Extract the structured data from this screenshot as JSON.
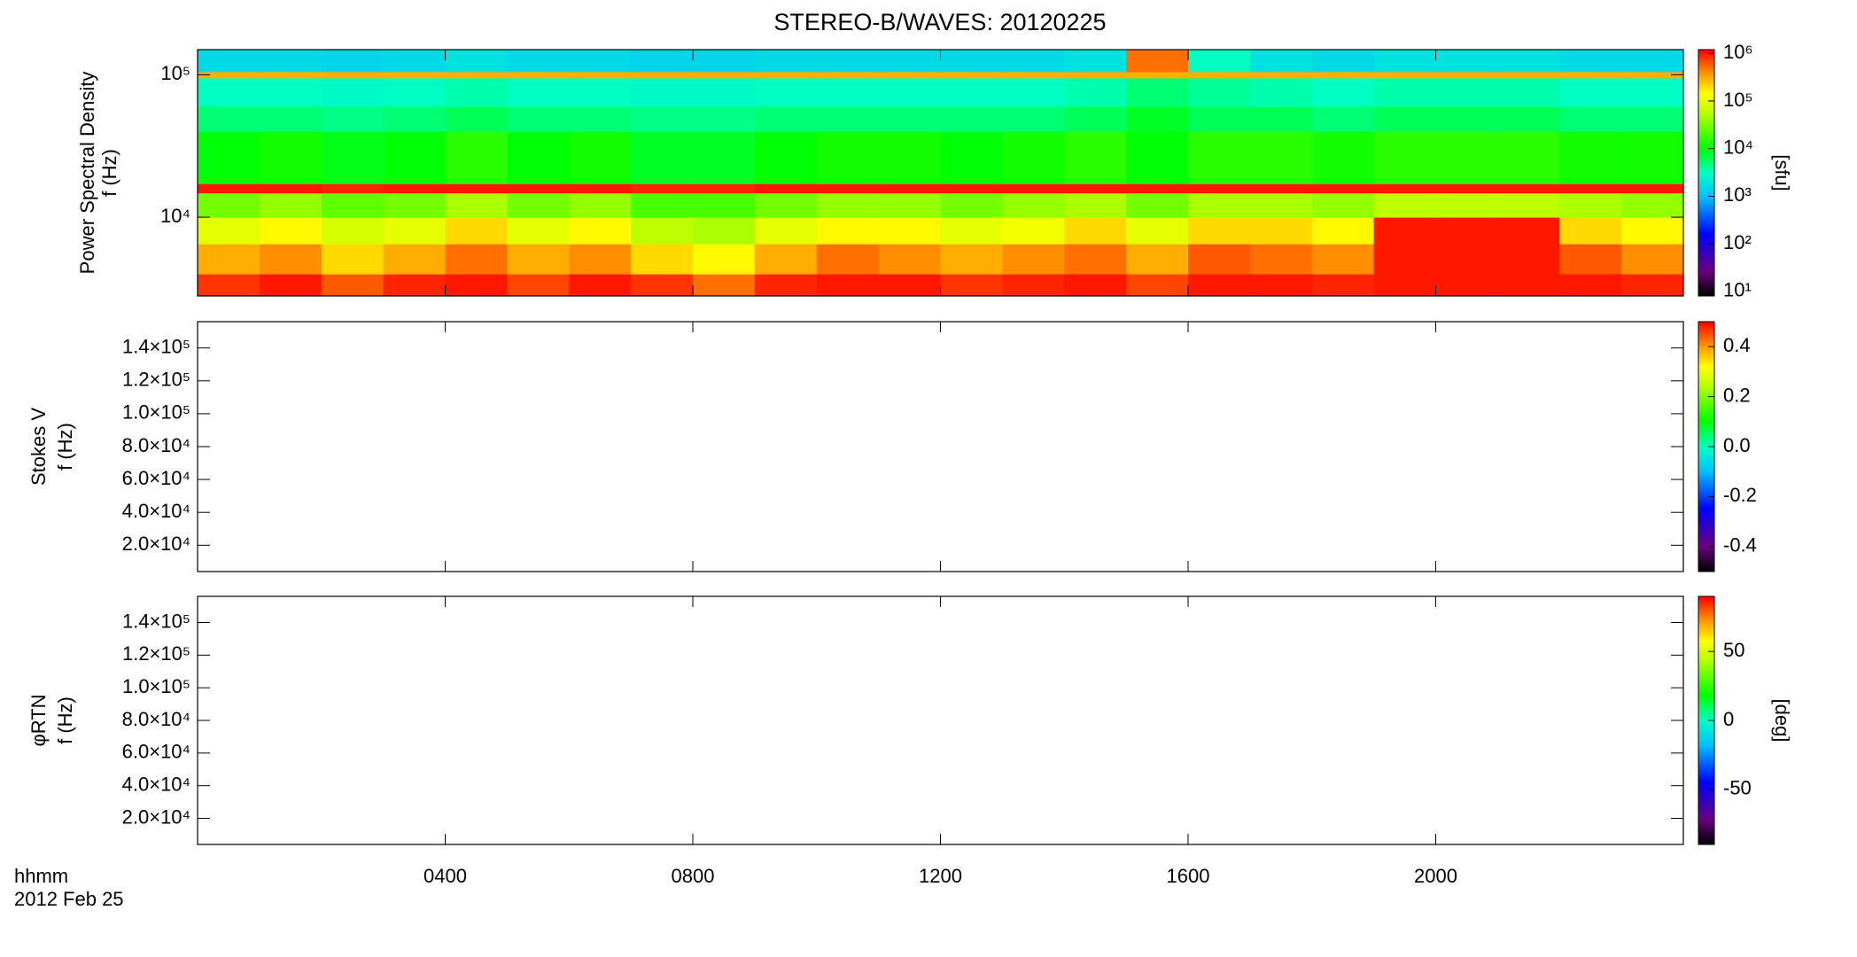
{
  "chart_data": [
    {
      "type": "spectrogram",
      "title": "STEREO-B/WAVES: 20120225",
      "ylabel": [
        "Power Spectral Density",
        "f (Hz)"
      ],
      "ylog": true,
      "ylim": [
        2800,
        150000
      ],
      "yticks": [
        {
          "value": 10000,
          "label": "10⁴"
        },
        {
          "value": 100000,
          "label": "10⁵"
        }
      ],
      "xlim": [
        0,
        24
      ],
      "x_bins": [
        0,
        1,
        2,
        3,
        4,
        5,
        6,
        7,
        8,
        9,
        10,
        11,
        12,
        13,
        14,
        15,
        16,
        17,
        18,
        19,
        20,
        21,
        22,
        23,
        24
      ],
      "y_bins": [
        2800,
        4000,
        6500,
        10000,
        14800,
        17200,
        40000,
        60000,
        95000,
        105000,
        150000
      ],
      "values": [
        [
          800000,
          1000000,
          600000,
          900000,
          1000000,
          700000,
          1000000,
          800000,
          500000,
          900000,
          1000000,
          1000000,
          800000,
          900000,
          1000000,
          700000,
          1000000,
          1000000,
          900000,
          1000000,
          1000000,
          1000000,
          1000000,
          900000
        ],
        [
          300000,
          400000,
          200000,
          300000,
          500000,
          300000,
          400000,
          200000,
          150000,
          300000,
          500000,
          400000,
          300000,
          400000,
          500000,
          300000,
          600000,
          500000,
          400000,
          1000000,
          1000000,
          1000000,
          600000,
          400000
        ],
        [
          100000,
          150000,
          80000,
          100000,
          200000,
          100000,
          150000,
          60000,
          50000,
          100000,
          150000,
          150000,
          100000,
          120000,
          200000,
          100000,
          200000,
          200000,
          150000,
          1000000,
          1000000,
          1000000,
          200000,
          150000
        ],
        [
          30000,
          40000,
          25000,
          30000,
          50000,
          30000,
          40000,
          20000,
          20000,
          30000,
          40000,
          40000,
          30000,
          40000,
          50000,
          30000,
          50000,
          50000,
          40000,
          60000,
          60000,
          60000,
          50000,
          40000
        ],
        [
          1000000,
          1000000,
          900000,
          1000000,
          1000000,
          1000000,
          1000000,
          900000,
          900000,
          1000000,
          1000000,
          1000000,
          1000000,
          1000000,
          1000000,
          1000000,
          1000000,
          1000000,
          1000000,
          1000000,
          1000000,
          1000000,
          1000000,
          1000000
        ],
        [
          10000,
          12000,
          9000,
          10000,
          15000,
          10000,
          12000,
          8000,
          8000,
          10000,
          12000,
          12000,
          10000,
          12000,
          15000,
          10000,
          15000,
          15000,
          12000,
          15000,
          15000,
          15000,
          12000,
          12000
        ],
        [
          5000,
          5000,
          4500,
          5000,
          6000,
          5000,
          5000,
          4500,
          4500,
          5000,
          5000,
          5000,
          5000,
          5000,
          6000,
          8000,
          6000,
          6000,
          5000,
          6000,
          6000,
          6000,
          5000,
          5000
        ],
        [
          3000,
          3000,
          2800,
          3000,
          3500,
          3000,
          3000,
          2800,
          2800,
          3000,
          3000,
          3000,
          3000,
          3000,
          3500,
          5000,
          4000,
          3500,
          3000,
          3500,
          3500,
          3500,
          3000,
          3000
        ],
        [
          300000,
          300000,
          300000,
          300000,
          300000,
          300000,
          300000,
          300000,
          300000,
          300000,
          300000,
          300000,
          300000,
          300000,
          300000,
          300000,
          300000,
          300000,
          300000,
          300000,
          300000,
          300000,
          300000,
          300000
        ],
        [
          1500,
          1500,
          1400,
          1500,
          1800,
          1500,
          1500,
          1400,
          1400,
          1500,
          1500,
          1500,
          1500,
          1500,
          1800,
          500000,
          3000,
          1800,
          1500,
          1800,
          1800,
          1800,
          1500,
          1500
        ]
      ],
      "clog": true,
      "clim": [
        8,
        1200000
      ],
      "cticks": [
        {
          "value": 10,
          "label": "10¹"
        },
        {
          "value": 100,
          "label": "10²"
        },
        {
          "value": 1000,
          "label": "10³"
        },
        {
          "value": 10000,
          "label": "10⁴"
        },
        {
          "value": 100000,
          "label": "10⁵"
        },
        {
          "value": 1000000,
          "label": "10⁶"
        }
      ],
      "clabel": "[sfu]",
      "colormap": "rainbow"
    },
    {
      "type": "spectrogram",
      "ylabel": [
        "Stokes V",
        "f (Hz)"
      ],
      "ylog": false,
      "ylim": [
        4000,
        156000
      ],
      "yticks": [
        {
          "value": 20000,
          "label": "2.0×10⁴"
        },
        {
          "value": 40000,
          "label": "4.0×10⁴"
        },
        {
          "value": 60000,
          "label": "6.0×10⁴"
        },
        {
          "value": 80000,
          "label": "8.0×10⁴"
        },
        {
          "value": 100000,
          "label": "1.0×10⁵"
        },
        {
          "value": 120000,
          "label": "1.2×10⁵"
        },
        {
          "value": 140000,
          "label": "1.4×10⁵"
        }
      ],
      "xlim": [
        0,
        24
      ],
      "clog": false,
      "clim": [
        -0.5,
        0.5
      ],
      "cticks": [
        -0.4,
        -0.2,
        {
          "value": 0,
          "label": "0.0"
        },
        0.2,
        0.4
      ],
      "colormap": "rainbow"
    },
    {
      "type": "spectrogram",
      "ylabel": [
        "φRTN",
        "f (Hz)"
      ],
      "ylog": false,
      "ylim": [
        4000,
        156000
      ],
      "yticks": [
        {
          "value": 20000,
          "label": "2.0×10⁴"
        },
        {
          "value": 40000,
          "label": "4.0×10⁴"
        },
        {
          "value": 60000,
          "label": "6.0×10⁴"
        },
        {
          "value": 80000,
          "label": "8.0×10⁴"
        },
        {
          "value": 100000,
          "label": "1.0×10⁵"
        },
        {
          "value": 120000,
          "label": "1.2×10⁵"
        },
        {
          "value": 140000,
          "label": "1.4×10⁵"
        }
      ],
      "xlim": [
        0,
        24
      ],
      "xticks": [
        {
          "value": 4,
          "label": "0400"
        },
        {
          "value": 8,
          "label": "0800"
        },
        {
          "value": 12,
          "label": "1200"
        },
        {
          "value": 16,
          "label": "1600"
        },
        {
          "value": 20,
          "label": "2000"
        }
      ],
      "xlabel": [
        "hhmm",
        "2012 Feb 25"
      ],
      "clog": false,
      "clim": [
        -90,
        90
      ],
      "cticks": [
        -50,
        0,
        50
      ],
      "clabel": "[deg]",
      "colormap": "rainbow"
    }
  ]
}
